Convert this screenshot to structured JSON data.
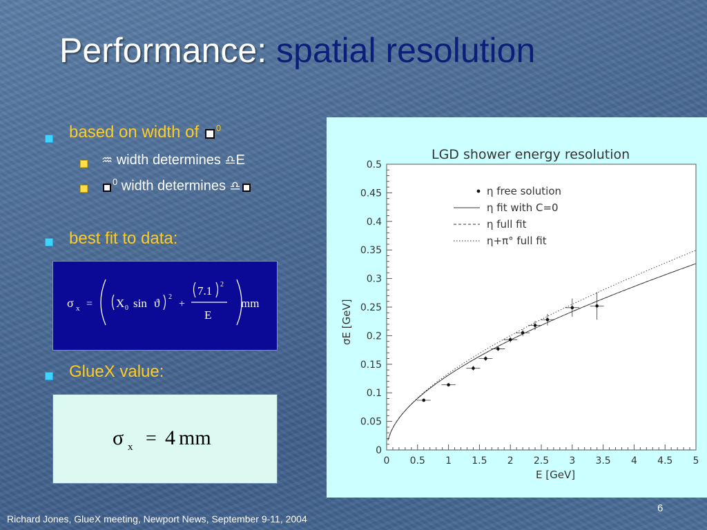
{
  "slide": {
    "title_plain": "Performance:",
    "title_accent": "spatial resolution",
    "bullets": {
      "b1": {
        "prefix": "based on width of",
        "sup": "0"
      },
      "sub1": {
        "text": "width determines",
        "suffix": "E"
      },
      "sub2": {
        "sup": "0",
        "text": "width determines"
      },
      "b2": "best fit to data:",
      "b3": "GlueX value:"
    },
    "equation1": {
      "lhs": "σ",
      "lhs_sub": "x",
      "eq": "=",
      "x0": "X",
      "x0_sub": "0",
      "sin": "sin",
      "theta": "ϑ",
      "sq": "2",
      "plus": "+",
      "num": "7.1",
      "num_sq": "2",
      "den": "E",
      "unit": "mm"
    },
    "equation2": {
      "lhs": "σ",
      "lhs_sub": "x",
      "eq": "=",
      "value": "4",
      "unit": "mm"
    },
    "footer": "Richard Jones, GlueX meeting, Newport News, September 9-11, 2004",
    "page_number": "6"
  },
  "chart_data": {
    "type": "scatter",
    "title": "LGD shower energy resolution",
    "xlabel": "E [GeV]",
    "ylabel": "σE [GeV]",
    "xlim": [
      0,
      5
    ],
    "ylim": [
      0,
      0.5
    ],
    "x_ticks": [
      "0",
      "0.5",
      "1",
      "1.5",
      "2",
      "2.5",
      "3",
      "3.5",
      "4",
      "4.5",
      "5"
    ],
    "y_ticks": [
      "0",
      "0.05",
      "0.1",
      "0.15",
      "0.2",
      "0.25",
      "0.3",
      "0.35",
      "0.4",
      "0.45",
      "0.5"
    ],
    "legend": [
      {
        "symbol": "•",
        "label": "η free solution"
      },
      {
        "symbol": "solid",
        "label": "η fit with C=0"
      },
      {
        "symbol": "dashed",
        "label": "η full fit"
      },
      {
        "symbol": "dotted",
        "label": "η+π° full fit"
      }
    ],
    "legend_position": "top-center",
    "series": [
      {
        "name": "η free solution",
        "type": "scatter",
        "points": [
          {
            "x": 0.6,
            "y": 0.087,
            "yerr": 0.003
          },
          {
            "x": 1.0,
            "y": 0.114,
            "yerr": 0.003
          },
          {
            "x": 1.4,
            "y": 0.143,
            "yerr": 0.004
          },
          {
            "x": 1.6,
            "y": 0.16,
            "yerr": 0.004
          },
          {
            "x": 1.8,
            "y": 0.177,
            "yerr": 0.004
          },
          {
            "x": 2.0,
            "y": 0.193,
            "yerr": 0.005
          },
          {
            "x": 2.2,
            "y": 0.205,
            "yerr": 0.006
          },
          {
            "x": 2.4,
            "y": 0.218,
            "yerr": 0.008
          },
          {
            "x": 2.6,
            "y": 0.228,
            "yerr": 0.01
          },
          {
            "x": 3.0,
            "y": 0.249,
            "yerr": 0.016
          },
          {
            "x": 3.4,
            "y": 0.252,
            "yerr": 0.024
          }
        ]
      },
      {
        "name": "η fit with C=0",
        "type": "line",
        "formula": "0.119*sqrt(E)+0.012*E"
      },
      {
        "name": "η full fit",
        "type": "line",
        "formula": "0.119*sqrt(E)+0.012*E"
      },
      {
        "name": "η+π° full fit",
        "type": "line",
        "formula": "0.116*sqrt(E)+0.018*E"
      }
    ],
    "grid": false
  }
}
